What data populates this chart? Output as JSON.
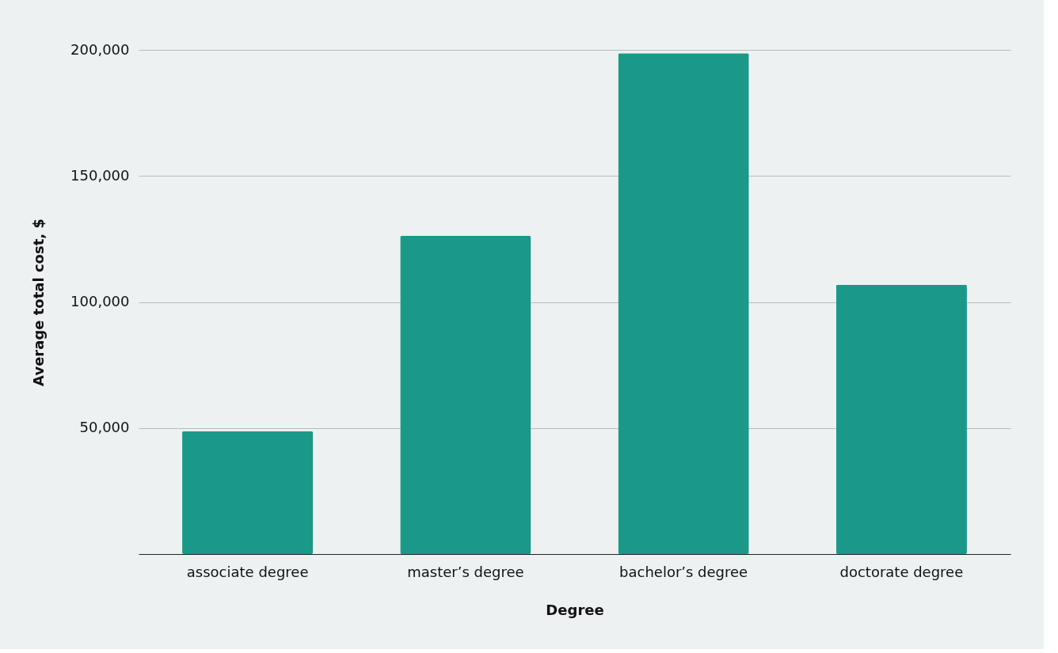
{
  "chart_data": {
    "type": "bar",
    "xlabel": "Degree",
    "ylabel": "Average total cost, $",
    "categories": [
      "associate degree",
      "master’s degree",
      "bachelor’s degree",
      "doctorate degree"
    ],
    "values": [
      48700,
      126200,
      198700,
      106800
    ],
    "color": "#1a9988",
    "ylim": [
      0,
      200000
    ],
    "yticks": [
      {
        "value": 0,
        "label": null
      },
      {
        "value": 50000,
        "label": "50,000"
      },
      {
        "value": 100000,
        "label": "100,000"
      },
      {
        "value": 150000,
        "label": "150,000"
      },
      {
        "value": 200000,
        "label": "200,000"
      }
    ],
    "grid": "y"
  }
}
